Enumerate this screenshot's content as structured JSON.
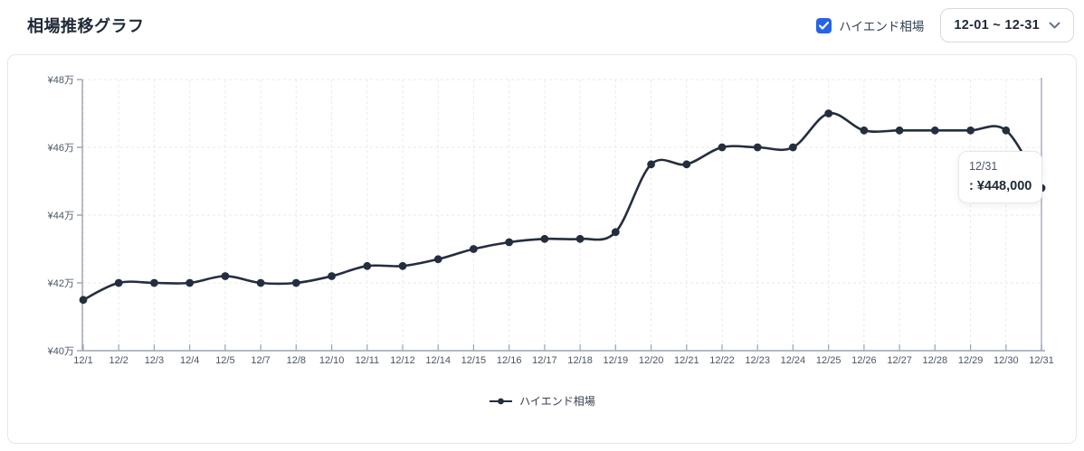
{
  "header": {
    "title": "相場推移グラフ",
    "highend_checkbox": {
      "label": "ハイエンド相場",
      "checked": true
    },
    "date_range": {
      "value": "12-01 ~ 12-31"
    }
  },
  "tooltip": {
    "date": "12/31",
    "value": ": ¥448,000"
  },
  "legend": {
    "label": "ハイエンド相場"
  },
  "colors": {
    "accent_blue": "#2563eb",
    "line": "#252e3f",
    "grid": "#e7e9ee",
    "axis": "#9ca3af",
    "tick_text": "#4b5563",
    "crosshair": "#a9b1bd",
    "title_text": "#1f2937",
    "card_border": "#e5e7eb"
  },
  "chart_data": {
    "type": "line",
    "title": "相場推移グラフ",
    "categories": [
      "12/1",
      "12/2",
      "12/3",
      "12/4",
      "12/5",
      "12/7",
      "12/8",
      "12/10",
      "12/11",
      "12/12",
      "12/14",
      "12/15",
      "12/16",
      "12/17",
      "12/18",
      "12/19",
      "12/20",
      "12/21",
      "12/22",
      "12/23",
      "12/24",
      "12/25",
      "12/26",
      "12/27",
      "12/28",
      "12/29",
      "12/30",
      "12/31"
    ],
    "series": [
      {
        "name": "ハイエンド相場",
        "values": [
          415000,
          420000,
          420000,
          420000,
          422000,
          420000,
          420000,
          422000,
          425000,
          425000,
          427000,
          430000,
          432000,
          433000,
          433000,
          435000,
          455000,
          455000,
          460000,
          460000,
          460000,
          470000,
          465000,
          465000,
          465000,
          465000,
          465000,
          448000
        ]
      }
    ],
    "ylim": [
      400000,
      480000
    ],
    "y_ticks": {
      "values": [
        400000,
        420000,
        440000,
        460000,
        480000
      ],
      "labels": [
        "¥40万",
        "¥42万",
        "¥44万",
        "¥46万",
        "¥48万"
      ]
    },
    "grid": {
      "horizontal": true,
      "vertical": true,
      "style": "dashed"
    },
    "legend_position": "bottom",
    "highlight": {
      "index": 27,
      "category": "12/31",
      "value": 448000,
      "value_display": ": ¥448,000"
    }
  }
}
